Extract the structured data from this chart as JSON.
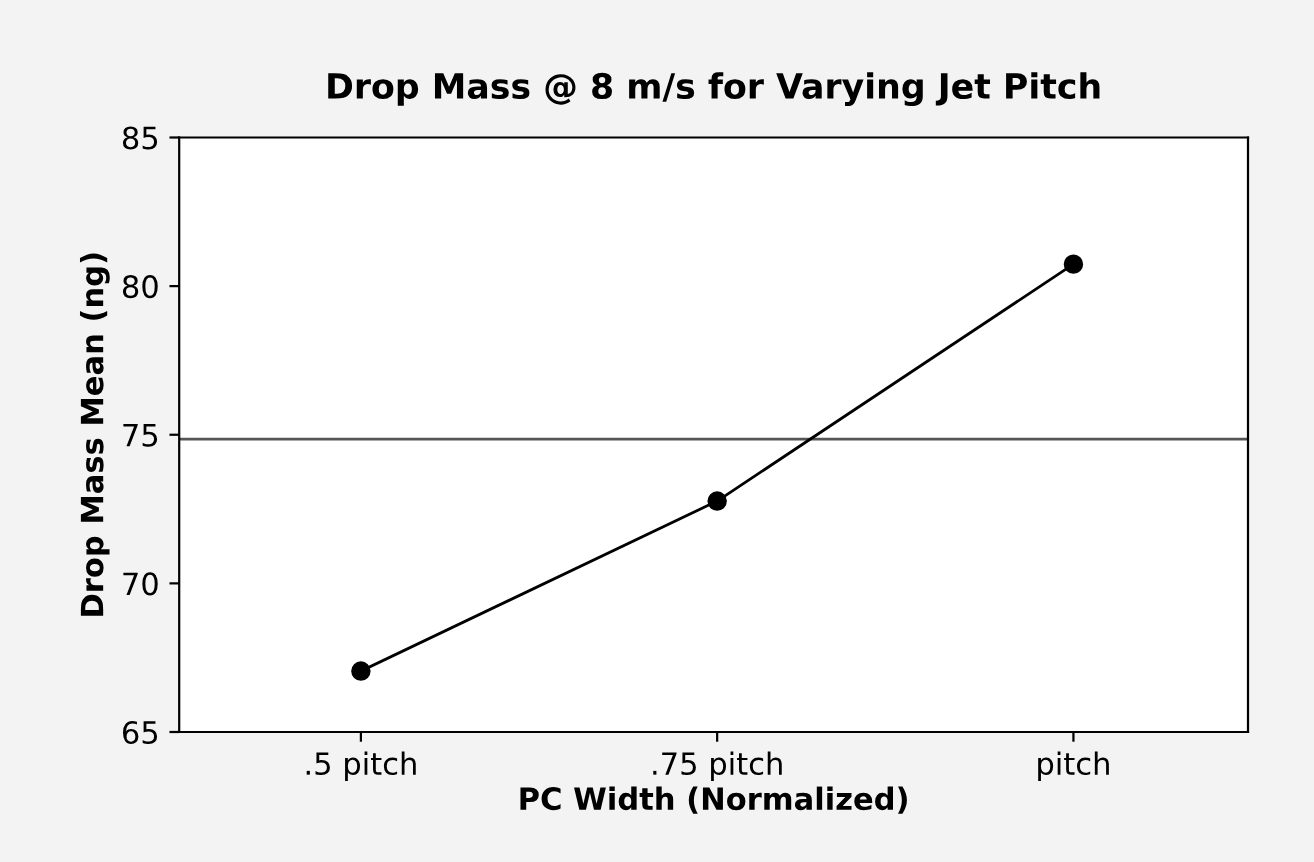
{
  "chart_data": {
    "type": "line",
    "title": "Drop Mass @ 8 m/s for Varying Jet Pitch",
    "xlabel": "PC Width (Normalized)",
    "ylabel": "Drop Mass Mean (ng)",
    "categories": [
      ".5 pitch",
      ".75 pitch",
      "pitch"
    ],
    "series": [
      {
        "color": "#000000",
        "values": [
          67.05,
          72.77,
          80.74
        ]
      }
    ],
    "ylim": [
      65,
      85
    ],
    "yticks": [
      65,
      70,
      75,
      80,
      85
    ],
    "marker": "circle",
    "line_style": "solid",
    "grid": false,
    "legend": false,
    "ref_lines": [
      {
        "axis": "y",
        "value": 74.85,
        "color": "#555555"
      }
    ]
  }
}
